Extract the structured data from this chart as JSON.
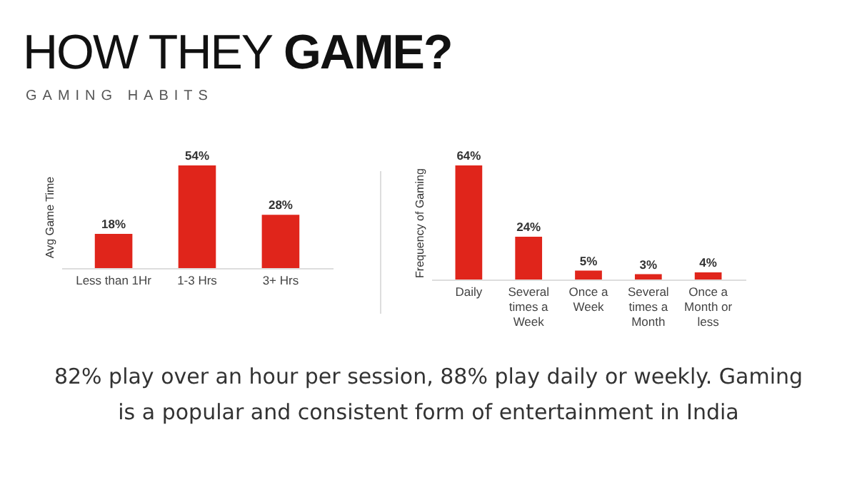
{
  "chart_data": [
    {
      "type": "bar",
      "title": "HOW THEY GAME?",
      "subtitle": "GAMING HABITS",
      "ylabel": "Avg Game Time",
      "categories": [
        "Less than 1Hr",
        "1-3 Hrs",
        "3+ Hrs"
      ],
      "values": [
        18,
        54,
        28
      ],
      "value_labels": [
        "18%",
        "54%",
        "28%"
      ],
      "color": "#e0251b",
      "tick_labels": "x",
      "grid": false
    },
    {
      "type": "bar",
      "ylabel": "Frequency of Gaming",
      "categories": [
        "Daily",
        "Several times a Week",
        "Once a Week",
        "Several times a Month",
        "Once a Month or less"
      ],
      "values": [
        64,
        24,
        5,
        3,
        4
      ],
      "value_labels": [
        "64%",
        "24%",
        "5%",
        "3%",
        "4%"
      ],
      "color": "#e0251b",
      "tick_labels": "x",
      "grid": false,
      "annotations": [
        "82% play over an hour per session, 88% play daily or weekly. Gaming is a popular and consistent form of entertainment in India"
      ]
    }
  ]
}
